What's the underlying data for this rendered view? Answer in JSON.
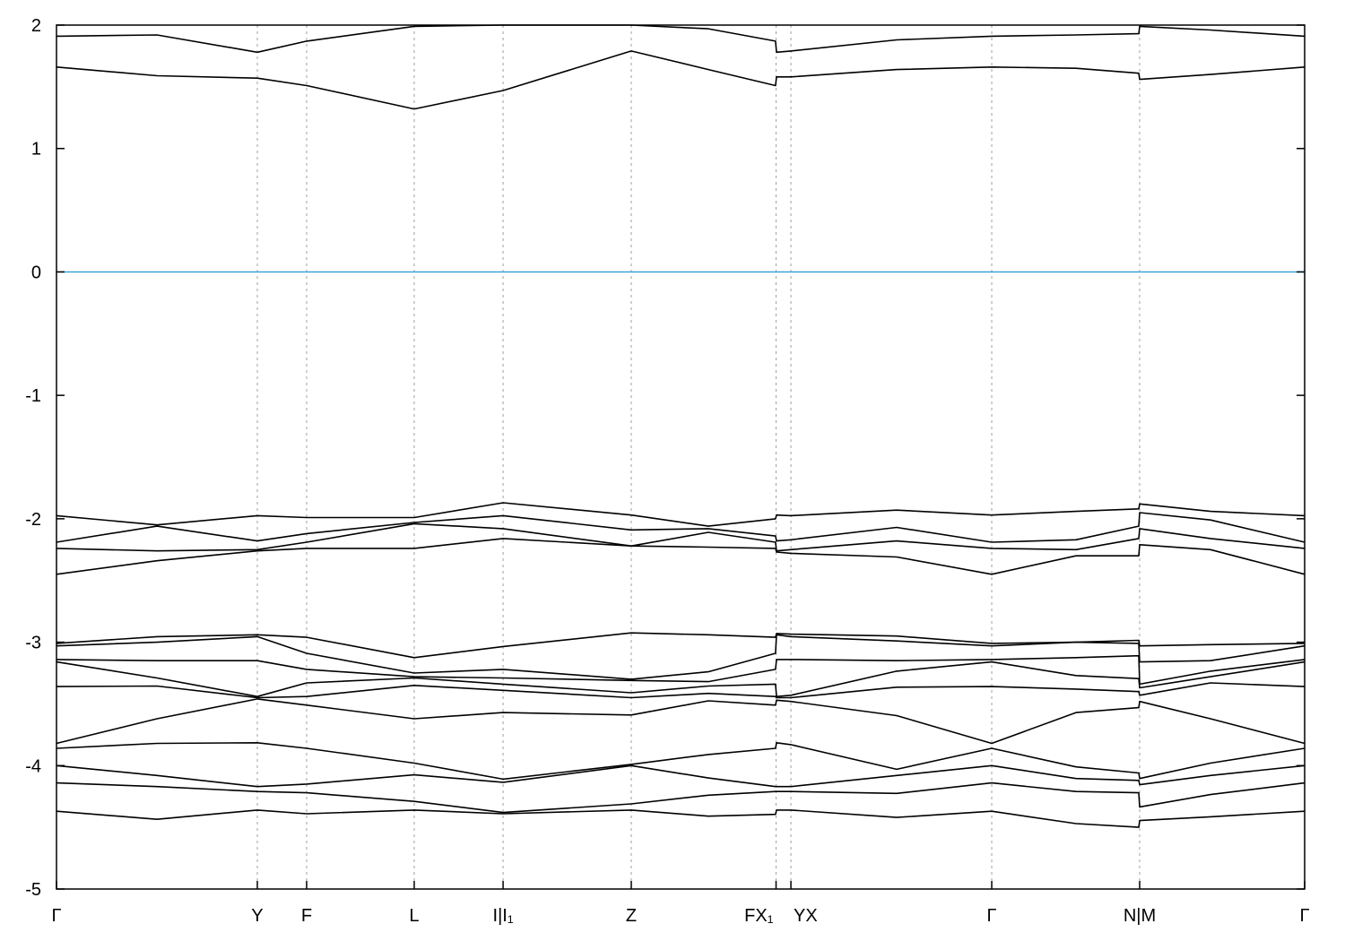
{
  "chart_data": {
    "type": "line",
    "title": "",
    "xlabel": "",
    "ylabel": "",
    "ylim": [
      -5,
      2
    ],
    "xlim": [
      0,
      1
    ],
    "grid": "vertical dashed at high-symmetry points",
    "fermi_level": 0,
    "colors": {
      "bands": "#000000",
      "fermi_line": "#2f9fd8",
      "grid": "#a0a0a0"
    },
    "y_ticks": [
      2,
      1,
      0,
      -1,
      -2,
      -3,
      -4,
      -5
    ],
    "y_tick_labels": [
      "2",
      "1",
      "0",
      "-1",
      "-2",
      "-3",
      "-4",
      "-5"
    ],
    "kpoint_ticks": [
      {
        "k": 0.0,
        "label": "Γ"
      },
      {
        "k": 0.1609,
        "label": "Y"
      },
      {
        "k": 0.2004,
        "label": "F"
      },
      {
        "k": 0.2866,
        "label": "L"
      },
      {
        "k": 0.3578,
        "label": "I|I₁"
      },
      {
        "k": 0.4605,
        "label": "Z"
      },
      {
        "k": 0.5765,
        "label": "FX₁"
      },
      {
        "k": 0.5884,
        "label": "YX"
      },
      {
        "k": 0.7493,
        "label": "Γ"
      },
      {
        "k": 0.8678,
        "label": "N|M"
      },
      {
        "k": 1.0,
        "label": "Γ"
      }
    ],
    "k": [
      0.0,
      0.0805,
      0.1609,
      0.2004,
      0.2866,
      0.3578,
      0.4605,
      0.5223,
      0.5761,
      0.5769,
      0.5884,
      0.6731,
      0.7493,
      0.8168,
      0.8671,
      0.8678,
      0.9246,
      1.0
    ],
    "energies_by_k": [
      [
        1.91,
        1.66,
        -1.975,
        -2.19,
        -2.24,
        -2.45,
        -3.01,
        -3.03,
        -3.14,
        -3.16,
        -3.36,
        -3.82,
        -3.86,
        -4.0,
        -4.14,
        -4.37
      ],
      [
        1.92,
        1.59,
        -2.05,
        -2.06,
        -2.26,
        -2.34,
        -2.955,
        -3.0,
        -3.15,
        -3.29,
        -3.355,
        -3.62,
        -3.82,
        -4.08,
        -4.17,
        -4.435
      ],
      [
        1.78,
        1.57,
        -1.975,
        -2.18,
        -2.25,
        -2.26,
        -2.94,
        -2.955,
        -3.15,
        -3.44,
        -3.45,
        -3.46,
        -3.815,
        -4.17,
        -4.21,
        -4.36
      ],
      [
        1.87,
        1.51,
        -1.99,
        -2.12,
        -2.19,
        -2.24,
        -2.96,
        -3.09,
        -3.22,
        -3.33,
        -3.44,
        -3.51,
        -3.86,
        -4.15,
        -4.22,
        -4.39
      ],
      [
        1.99,
        1.32,
        -1.99,
        -2.03,
        -2.04,
        -2.24,
        -3.125,
        -3.25,
        -3.28,
        -3.29,
        -3.35,
        -3.62,
        -3.98,
        -4.075,
        -4.29,
        -4.36
      ],
      [
        2.0,
        1.47,
        -1.87,
        -1.975,
        -2.08,
        -2.16,
        -3.035,
        -3.22,
        -3.29,
        -3.34,
        -3.39,
        -3.57,
        -4.11,
        -4.135,
        -4.38,
        -4.39
      ],
      [
        2.0,
        1.79,
        -1.97,
        -2.09,
        -2.22,
        -2.22,
        -2.925,
        -3.3,
        -3.31,
        -3.41,
        -3.45,
        -3.59,
        -3.99,
        -4.0,
        -4.31,
        -4.36
      ],
      [
        1.97,
        1.64,
        -2.06,
        -2.08,
        -2.11,
        -2.23,
        -2.94,
        -3.24,
        -3.32,
        -3.355,
        -3.415,
        -3.475,
        -3.91,
        -4.1,
        -4.24,
        -4.41
      ],
      [
        1.87,
        1.51,
        -2.0,
        -2.14,
        -2.19,
        -2.24,
        -2.96,
        -3.09,
        -3.22,
        -3.34,
        -3.44,
        -3.51,
        -3.86,
        -4.17,
        -4.21,
        -4.395
      ],
      [
        1.78,
        1.58,
        -1.97,
        -2.18,
        -2.26,
        -2.27,
        -2.93,
        -2.94,
        -3.14,
        -3.44,
        -3.45,
        -3.47,
        -3.815,
        -4.17,
        -4.21,
        -4.36
      ],
      [
        1.79,
        1.58,
        -1.975,
        -2.17,
        -2.25,
        -2.28,
        -2.935,
        -2.955,
        -3.14,
        -3.43,
        -3.45,
        -3.48,
        -3.83,
        -4.17,
        -4.21,
        -4.36
      ],
      [
        1.88,
        1.64,
        -1.93,
        -2.07,
        -2.18,
        -2.31,
        -2.95,
        -2.99,
        -3.15,
        -3.235,
        -3.365,
        -3.595,
        -4.03,
        -4.08,
        -4.225,
        -4.42
      ],
      [
        1.91,
        1.66,
        -1.97,
        -2.19,
        -2.24,
        -2.45,
        -3.01,
        -3.03,
        -3.14,
        -3.16,
        -3.36,
        -3.82,
        -3.86,
        -4.0,
        -4.14,
        -4.37
      ],
      [
        1.92,
        1.65,
        -1.94,
        -2.17,
        -2.25,
        -2.3,
        -3.0,
        -3.0,
        -3.125,
        -3.27,
        -3.38,
        -3.57,
        -4.01,
        -4.105,
        -4.21,
        -4.47
      ],
      [
        1.93,
        1.61,
        -1.92,
        -2.06,
        -2.16,
        -2.3,
        -2.985,
        -3.01,
        -3.11,
        -3.295,
        -3.4,
        -3.53,
        -4.06,
        -4.12,
        -4.22,
        -4.5
      ],
      [
        1.99,
        1.56,
        -1.88,
        -1.95,
        -2.08,
        -2.21,
        -3.03,
        -3.16,
        -3.34,
        -3.37,
        -3.43,
        -3.48,
        -4.105,
        -4.155,
        -4.335,
        -4.445
      ],
      [
        1.96,
        1.6,
        -1.94,
        -2.01,
        -2.16,
        -2.25,
        -3.02,
        -3.15,
        -3.235,
        -3.28,
        -3.33,
        -3.62,
        -3.98,
        -4.08,
        -4.235,
        -4.415
      ],
      [
        1.91,
        1.66,
        -1.975,
        -2.19,
        -2.24,
        -2.45,
        -3.01,
        -3.03,
        -3.14,
        -3.16,
        -3.36,
        -3.82,
        -3.86,
        -4.0,
        -4.14,
        -4.37
      ]
    ]
  }
}
